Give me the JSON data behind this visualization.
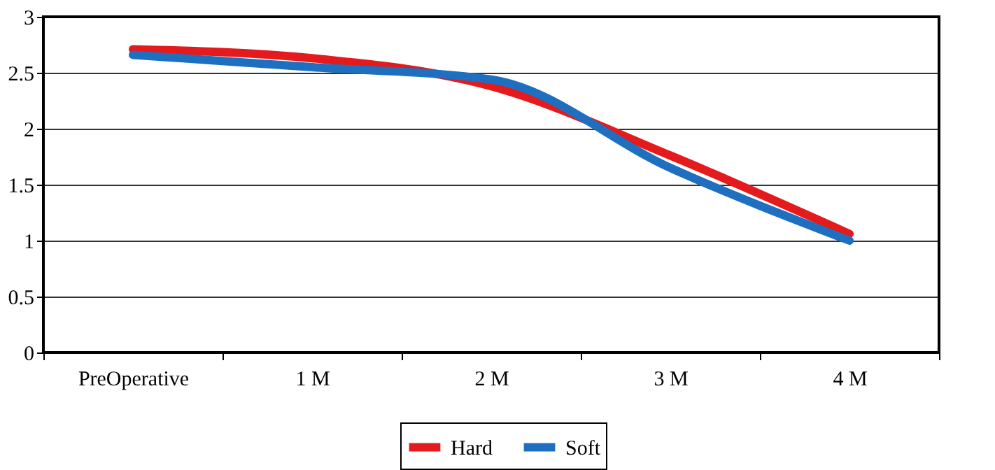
{
  "chart_data": {
    "type": "line",
    "categories": [
      "PreOperative",
      "1 M",
      "2 M",
      "3 M",
      "4 M"
    ],
    "series": [
      {
        "name": "Hard",
        "color": "#e41a1c",
        "values": [
          2.71,
          2.63,
          2.38,
          1.76,
          1.06
        ]
      },
      {
        "name": "Soft",
        "color": "#1f6fc1",
        "values": [
          2.66,
          2.55,
          2.44,
          1.65,
          1.0
        ]
      }
    ],
    "ylim": [
      0,
      3
    ],
    "yticks": [
      0,
      0.5,
      1,
      1.5,
      2,
      2.5,
      3
    ],
    "grid": "y",
    "legend": "bottom",
    "marker": "none",
    "line_style": "solid"
  }
}
